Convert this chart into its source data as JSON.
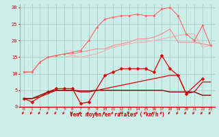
{
  "xlabel": "Vent moyen/en rafales ( km/h )",
  "bg_color": "#cceee8",
  "grid_color": "#aacccc",
  "x_values": [
    0,
    1,
    2,
    3,
    4,
    5,
    6,
    7,
    8,
    9,
    10,
    11,
    12,
    13,
    14,
    15,
    16,
    17,
    18,
    19,
    20,
    21,
    22,
    23
  ],
  "ylim": [
    0,
    31
  ],
  "yticks": [
    0,
    5,
    10,
    15,
    20,
    25,
    30
  ],
  "series": [
    {
      "color": "#ffaaaa",
      "linewidth": 0.8,
      "marker": null,
      "values": [
        10.5,
        10.5,
        13.5,
        15.0,
        15.0,
        15.0,
        15.5,
        15.0,
        15.5,
        16.0,
        17.0,
        18.0,
        18.5,
        19.0,
        19.5,
        19.5,
        20.0,
        20.5,
        21.0,
        21.5,
        22.0,
        22.0,
        18.0,
        18.5
      ]
    },
    {
      "color": "#ff8888",
      "linewidth": 0.8,
      "marker": null,
      "values": [
        10.5,
        10.5,
        13.5,
        15.0,
        15.5,
        16.0,
        16.0,
        16.5,
        17.0,
        17.5,
        17.5,
        18.5,
        19.0,
        19.5,
        20.5,
        20.5,
        21.0,
        22.0,
        23.5,
        19.5,
        19.5,
        19.5,
        19.0,
        18.5
      ]
    },
    {
      "color": "#ff6666",
      "linewidth": 0.8,
      "marker": "o",
      "markersize": 2,
      "values": [
        10.5,
        10.5,
        13.5,
        15.0,
        15.5,
        16.0,
        16.5,
        17.0,
        20.0,
        24.0,
        26.5,
        27.0,
        27.5,
        27.5,
        28.0,
        27.5,
        27.5,
        29.5,
        30.0,
        27.5,
        22.0,
        20.0,
        24.5,
        18.5
      ]
    },
    {
      "color": "#dd0000",
      "linewidth": 0.9,
      "marker": "D",
      "markersize": 2.5,
      "values": [
        2.5,
        1.5,
        null,
        4.5,
        5.5,
        5.5,
        5.5,
        1.0,
        1.5,
        null,
        9.5,
        10.5,
        11.5,
        11.5,
        11.5,
        11.5,
        10.5,
        15.5,
        11.5,
        9.5,
        4.0,
        null,
        8.5,
        null
      ]
    },
    {
      "color": "#dd0000",
      "linewidth": 0.9,
      "marker": null,
      "values": [
        2.5,
        2.5,
        3.0,
        4.0,
        5.0,
        5.0,
        5.0,
        4.5,
        4.5,
        5.0,
        5.5,
        6.0,
        6.5,
        7.0,
        7.5,
        8.0,
        8.5,
        9.0,
        9.5,
        9.5,
        4.0,
        4.5,
        7.5,
        7.5
      ]
    },
    {
      "color": "#880000",
      "linewidth": 1.0,
      "marker": null,
      "values": [
        2.5,
        2.5,
        3.5,
        4.5,
        5.0,
        5.0,
        5.0,
        4.8,
        4.8,
        5.0,
        5.0,
        5.0,
        5.0,
        5.0,
        5.0,
        5.0,
        5.0,
        5.0,
        4.5,
        4.5,
        4.5,
        4.5,
        3.5,
        3.5
      ]
    }
  ]
}
